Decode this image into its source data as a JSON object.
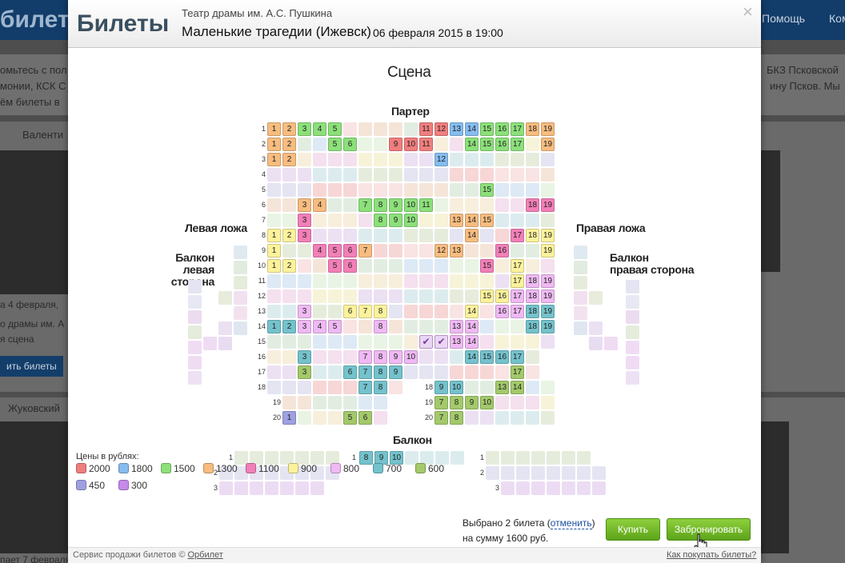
{
  "background": {
    "logo": "билет",
    "nav": [
      "Помощь",
      "Ком"
    ],
    "lines": [
      "омьтесь с пол",
      "монии, КСК С",
      "ём билеты в",
      "БКЗ Псковской",
      "ину Псков. Мы"
    ],
    "cards": [
      {
        "title": "Валенти",
        "date": "а 4 февраля,",
        "place": "о драмы им. А",
        "stage": "я сцена",
        "button": "ить билеты"
      },
      {
        "title": "Жуковский",
        "date": "пает 7 февраля,"
      }
    ]
  },
  "header": {
    "title": "Билеты",
    "venue": "Театр драмы им. А.С. Пушкина",
    "event": "Маленькие трагедии (Ижевск)",
    "date": "06 февраля 2015 в 19:00",
    "close": "×"
  },
  "hall": {
    "stage": "Сцена",
    "parter": "Партер",
    "left_box": "Левая ложа",
    "right_box": "Правая ложа",
    "left_balcony": "Балкон\nлевая сторона",
    "right_balcony": "Балкон\nправая сторона",
    "balcony": "Балкон",
    "selected_mark": "✔"
  },
  "colors": {
    "2000": "#f07e7e",
    "1800": "#86bcef",
    "1500": "#8ce07a",
    "1300": "#f7bc7f",
    "1100": "#f27fb8",
    "900": "#fcf29c",
    "800": "#efb9f3",
    "700": "#74c2cc",
    "600": "#a3c96b",
    "450": "#9ea0e2",
    "300": "#c58aea"
  },
  "seatmap": {
    "parter_rows": [
      {
        "row": "1",
        "cols": [
          0,
          18
        ],
        "seats": [
          [
            0,
            "1",
            "1300"
          ],
          [
            1,
            "2",
            "1300"
          ],
          [
            2,
            "3",
            "1500"
          ],
          [
            3,
            "4",
            "1500"
          ],
          [
            4,
            "5",
            "1500"
          ],
          [
            10,
            "11",
            "2000"
          ],
          [
            11,
            "12",
            "2000"
          ],
          [
            12,
            "13",
            "1800"
          ],
          [
            13,
            "14",
            "1800"
          ],
          [
            14,
            "15",
            "1500"
          ],
          [
            15,
            "16",
            "1500"
          ],
          [
            16,
            "17",
            "1500"
          ],
          [
            17,
            "18",
            "1300"
          ],
          [
            18,
            "19",
            "1300"
          ]
        ]
      },
      {
        "row": "2",
        "cols": [
          0,
          18
        ],
        "seats": [
          [
            0,
            "1",
            "1300"
          ],
          [
            1,
            "2",
            "1300"
          ],
          [
            4,
            "5",
            "1500"
          ],
          [
            5,
            "6",
            "1500"
          ],
          [
            8,
            "9",
            "2000"
          ],
          [
            9,
            "10",
            "2000"
          ],
          [
            10,
            "11",
            "2000"
          ],
          [
            13,
            "14",
            "1500"
          ],
          [
            14,
            "15",
            "1500"
          ],
          [
            15,
            "16",
            "1500"
          ],
          [
            16,
            "17",
            "1500"
          ],
          [
            18,
            "19",
            "1300"
          ]
        ]
      },
      {
        "row": "3",
        "cols": [
          0,
          18
        ],
        "seats": [
          [
            0,
            "1",
            "1300"
          ],
          [
            1,
            "2",
            "1300"
          ],
          [
            11,
            "12",
            "1800"
          ]
        ]
      },
      {
        "row": "4",
        "cols": [
          0,
          18
        ],
        "seats": []
      },
      {
        "row": "5",
        "cols": [
          0,
          18
        ],
        "seats": [
          [
            14,
            "15",
            "1500"
          ]
        ]
      },
      {
        "row": "6",
        "cols": [
          0,
          18
        ],
        "seats": [
          [
            2,
            "3",
            "1300"
          ],
          [
            3,
            "4",
            "1300"
          ],
          [
            6,
            "7",
            "1500"
          ],
          [
            7,
            "8",
            "1500"
          ],
          [
            8,
            "9",
            "1500"
          ],
          [
            9,
            "10",
            "1500"
          ],
          [
            10,
            "11",
            "1500"
          ],
          [
            17,
            "18",
            "1100"
          ],
          [
            18,
            "19",
            "1100"
          ]
        ]
      },
      {
        "row": "7",
        "cols": [
          0,
          18
        ],
        "seats": [
          [
            2,
            "3",
            "1100"
          ],
          [
            7,
            "8",
            "1500"
          ],
          [
            8,
            "9",
            "1500"
          ],
          [
            9,
            "10",
            "1500"
          ],
          [
            12,
            "13",
            "1300"
          ],
          [
            13,
            "14",
            "1300"
          ],
          [
            14,
            "15",
            "1300"
          ]
        ]
      },
      {
        "row": "8",
        "cols": [
          0,
          18
        ],
        "seats": [
          [
            0,
            "1",
            "900"
          ],
          [
            1,
            "2",
            "900"
          ],
          [
            2,
            "3",
            "1100"
          ],
          [
            13,
            "14",
            "1300"
          ],
          [
            16,
            "17",
            "1100"
          ],
          [
            17,
            "18",
            "900"
          ],
          [
            18,
            "19",
            "900"
          ]
        ]
      },
      {
        "row": "9",
        "cols": [
          0,
          18
        ],
        "seats": [
          [
            0,
            "1",
            "900"
          ],
          [
            3,
            "4",
            "1100"
          ],
          [
            4,
            "5",
            "1100"
          ],
          [
            5,
            "6",
            "1100"
          ],
          [
            6,
            "7",
            "1300"
          ],
          [
            11,
            "12",
            "1300"
          ],
          [
            12,
            "13",
            "1300"
          ],
          [
            15,
            "16",
            "1100"
          ],
          [
            18,
            "19",
            "900"
          ]
        ]
      },
      {
        "row": "10",
        "cols": [
          0,
          18
        ],
        "seats": [
          [
            0,
            "1",
            "900"
          ],
          [
            1,
            "2",
            "900"
          ],
          [
            4,
            "5",
            "1100"
          ],
          [
            5,
            "6",
            "1100"
          ],
          [
            14,
            "15",
            "1100"
          ],
          [
            16,
            "17",
            "900"
          ]
        ]
      },
      {
        "row": "11",
        "cols": [
          0,
          18
        ],
        "seats": [
          [
            16,
            "17",
            "900"
          ],
          [
            17,
            "18",
            "800"
          ],
          [
            18,
            "19",
            "800"
          ]
        ]
      },
      {
        "row": "12",
        "cols": [
          0,
          18
        ],
        "seats": [
          [
            14,
            "15",
            "900"
          ],
          [
            15,
            "16",
            "900"
          ],
          [
            16,
            "17",
            "800"
          ],
          [
            17,
            "18",
            "800"
          ],
          [
            18,
            "19",
            "800"
          ]
        ]
      },
      {
        "row": "13",
        "cols": [
          0,
          18
        ],
        "seats": [
          [
            2,
            "3",
            "800"
          ],
          [
            5,
            "6",
            "900"
          ],
          [
            6,
            "7",
            "900"
          ],
          [
            7,
            "8",
            "900"
          ],
          [
            13,
            "14",
            "900"
          ],
          [
            15,
            "16",
            "800"
          ],
          [
            16,
            "17",
            "800"
          ],
          [
            17,
            "18",
            "700"
          ],
          [
            18,
            "19",
            "700"
          ]
        ]
      },
      {
        "row": "14",
        "cols": [
          0,
          18
        ],
        "seats": [
          [
            0,
            "1",
            "700"
          ],
          [
            1,
            "2",
            "700"
          ],
          [
            2,
            "3",
            "800"
          ],
          [
            3,
            "4",
            "800"
          ],
          [
            4,
            "5",
            "800"
          ],
          [
            7,
            "8",
            "800"
          ],
          [
            12,
            "13",
            "800"
          ],
          [
            13,
            "14",
            "800"
          ],
          [
            17,
            "18",
            "700"
          ],
          [
            18,
            "19",
            "700"
          ]
        ]
      },
      {
        "row": "15",
        "cols": [
          0,
          18
        ],
        "seats": [
          [
            12,
            "13",
            "800"
          ],
          [
            13,
            "14",
            "800"
          ]
        ],
        "selected": [
          10,
          11
        ]
      },
      {
        "row": "16",
        "cols": [
          0,
          17
        ],
        "seats": [
          [
            2,
            "3",
            "700"
          ],
          [
            6,
            "7",
            "800"
          ],
          [
            7,
            "8",
            "800"
          ],
          [
            8,
            "9",
            "800"
          ],
          [
            9,
            "10",
            "800"
          ],
          [
            13,
            "14",
            "700"
          ],
          [
            14,
            "15",
            "700"
          ],
          [
            15,
            "16",
            "700"
          ],
          [
            16,
            "17",
            "700"
          ]
        ]
      },
      {
        "row": "17",
        "cols": [
          0,
          17
        ],
        "seats": [
          [
            2,
            "3",
            "600"
          ],
          [
            5,
            "6",
            "700"
          ],
          [
            6,
            "7",
            "700"
          ],
          [
            7,
            "8",
            "700"
          ],
          [
            8,
            "9",
            "700"
          ],
          [
            16,
            "17",
            "600"
          ]
        ]
      },
      {
        "row": "18",
        "cols": [
          0,
          8
        ],
        "seats": [
          [
            6,
            "7",
            "700"
          ],
          [
            7,
            "8",
            "700"
          ]
        ]
      },
      {
        "row": "18",
        "cols": [
          11,
          18
        ],
        "seats": [
          [
            11,
            "9",
            "700"
          ],
          [
            12,
            "10",
            "700"
          ],
          [
            15,
            "13",
            "600"
          ],
          [
            16,
            "14",
            "600"
          ]
        ]
      },
      {
        "row": "19",
        "cols": [
          1,
          7
        ],
        "seats": []
      },
      {
        "row": "19",
        "cols": [
          11,
          18
        ],
        "seats": [
          [
            11,
            "7",
            "600"
          ],
          [
            12,
            "8",
            "600"
          ],
          [
            13,
            "9",
            "600"
          ],
          [
            14,
            "10",
            "600"
          ]
        ]
      },
      {
        "row": "20",
        "cols": [
          1,
          7
        ],
        "seats": [
          [
            1,
            "1",
            "450"
          ],
          [
            5,
            "5",
            "600"
          ],
          [
            6,
            "6",
            "600"
          ]
        ]
      },
      {
        "row": "20",
        "cols": [
          11,
          18
        ],
        "seats": [
          [
            11,
            "7",
            "600"
          ],
          [
            12,
            "8",
            "600"
          ]
        ]
      }
    ],
    "balcony_rows": [
      {
        "row": "1",
        "seats_left": [
          [
            "8",
            "700"
          ],
          [
            "9",
            "700"
          ],
          [
            "10",
            "700"
          ]
        ]
      },
      {
        "row": "2",
        "seats_left": []
      },
      {
        "row": "3",
        "seats_left": []
      }
    ]
  },
  "legend": {
    "title": "Цены в рублях:",
    "items": [
      {
        "price": "2000",
        "color": "#f07e7e"
      },
      {
        "price": "1800",
        "color": "#86bcef"
      },
      {
        "price": "1500",
        "color": "#8ce07a"
      },
      {
        "price": "1300",
        "color": "#f7bc7f"
      },
      {
        "price": "1100",
        "color": "#f27fb8"
      },
      {
        "price": "900",
        "color": "#fcf29c"
      },
      {
        "price": "800",
        "color": "#efb9f3"
      },
      {
        "price": "700",
        "color": "#74c2cc"
      },
      {
        "price": "600",
        "color": "#a3c96b"
      },
      {
        "price": "450",
        "color": "#9ea0e2"
      },
      {
        "price": "300",
        "color": "#c58aea"
      }
    ]
  },
  "summary": {
    "selected_text": "Выбрано 2 билета",
    "cancel": "отменить",
    "sum_text": "на сумму 1600 руб."
  },
  "actions": {
    "buy": "Купить",
    "reserve": "Забронировать"
  },
  "footer": {
    "service_prefix": "Сервис продажи билетов ©",
    "service_link": "Орбилет",
    "howto": "Как покупать билеты?"
  }
}
